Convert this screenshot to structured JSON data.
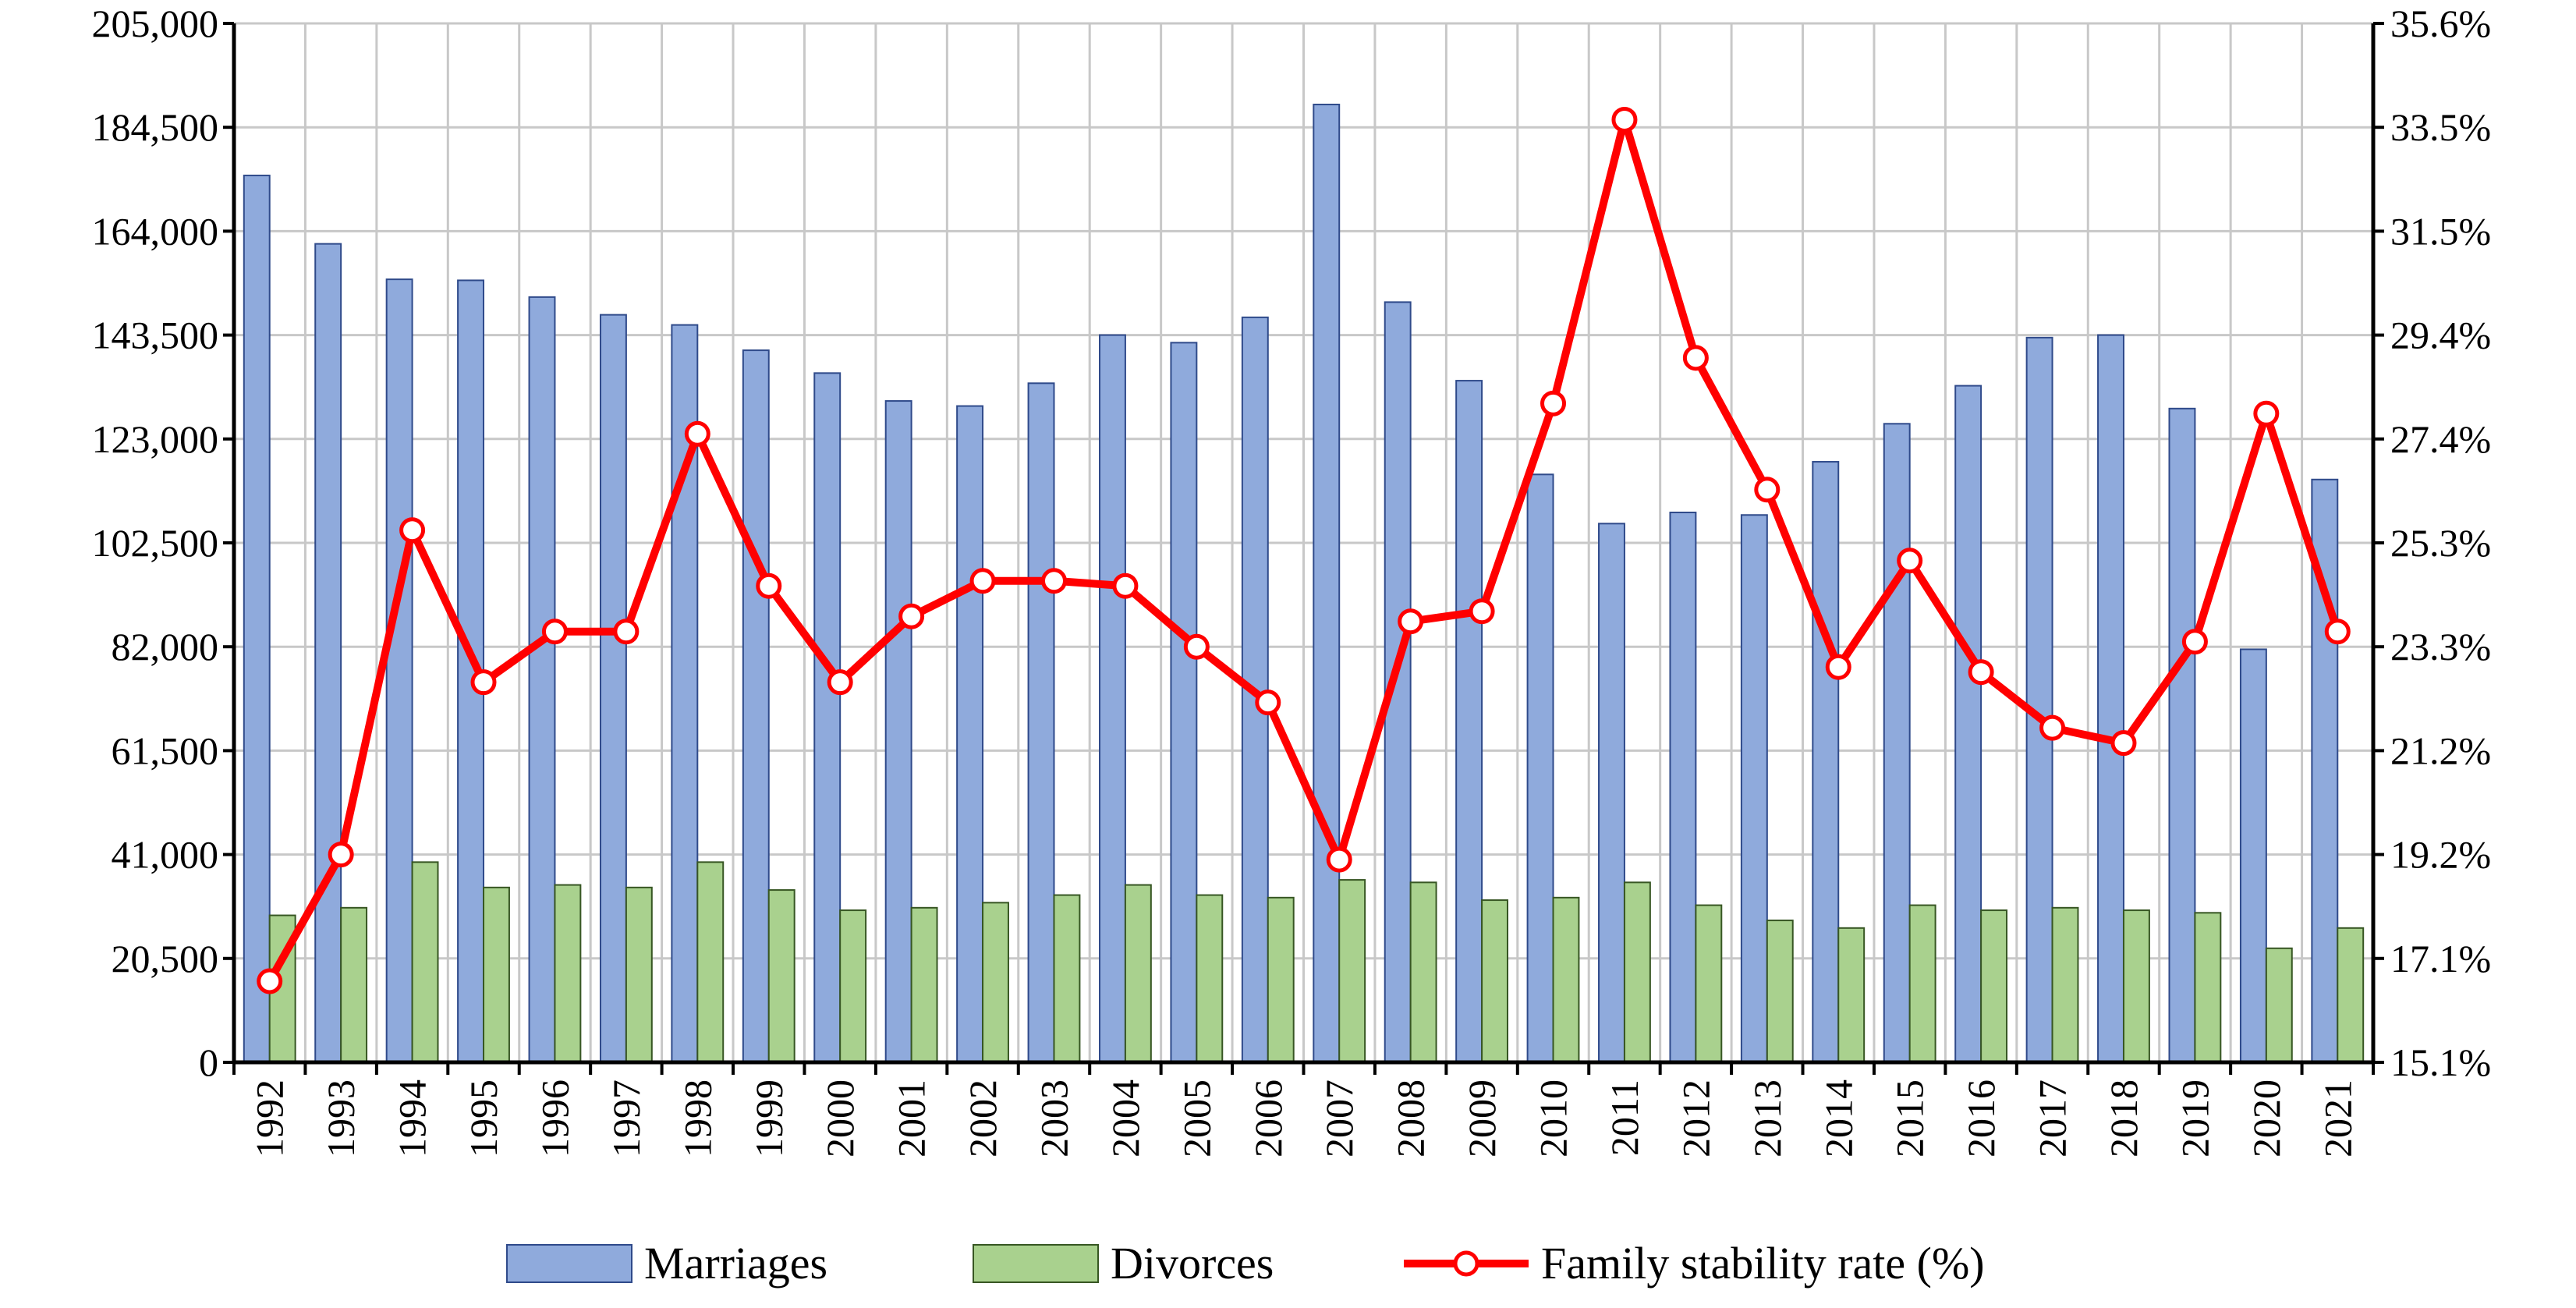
{
  "chart_data": {
    "type": "bar",
    "title": "",
    "xlabel": "",
    "ylabel": "",
    "categories": [
      "1992",
      "1993",
      "1994",
      "1995",
      "1996",
      "1997",
      "1998",
      "1999",
      "2000",
      "2001",
      "2002",
      "2003",
      "2004",
      "2005",
      "2006",
      "2007",
      "2008",
      "2009",
      "2010",
      "2011",
      "2012",
      "2013",
      "2014",
      "2015",
      "2016",
      "2017",
      "2018",
      "2019",
      "2020",
      "2021"
    ],
    "ylim": [
      0,
      205000
    ],
    "y2lim": [
      15.1,
      35.6
    ],
    "y_ticks": [
      "0",
      "20,500",
      "41,000",
      "61,500",
      "82,000",
      "102,500",
      "123,000",
      "143,500",
      "164,000",
      "184,500",
      "205,000"
    ],
    "y2_ticks": [
      "15.1%",
      "17.1%",
      "19.2%",
      "21.2%",
      "23.3%",
      "25.3%",
      "27.4%",
      "29.4%",
      "31.5%",
      "33.5%",
      "35.6%"
    ],
    "grid": true,
    "legend_position": "bottom",
    "series": [
      {
        "name": "Marriages",
        "type": "bar",
        "axis": "left",
        "color": "#8faadc",
        "edge": "#2f4a8a",
        "values": [
          175000,
          161500,
          154500,
          154300,
          151000,
          147500,
          145500,
          140500,
          136000,
          130500,
          129500,
          134000,
          143500,
          142000,
          147000,
          189000,
          150000,
          134500,
          116000,
          106300,
          108500,
          108000,
          118500,
          126000,
          133500,
          143000,
          143500,
          129000,
          81500,
          115000
        ]
      },
      {
        "name": "Divorces",
        "type": "bar",
        "axis": "left",
        "color": "#a9d18e",
        "edge": "#375623",
        "values": [
          29000,
          30500,
          39500,
          34500,
          35000,
          34500,
          39500,
          34000,
          30000,
          30500,
          31500,
          33000,
          35000,
          33000,
          32500,
          36000,
          35500,
          32000,
          32500,
          35500,
          31000,
          28000,
          26500,
          31000,
          30000,
          30500,
          30000,
          29500,
          22500,
          26500
        ]
      },
      {
        "name": "Family stability rate (%)",
        "type": "line",
        "axis": "right",
        "color": "#ff0000",
        "values": [
          16.7,
          19.2,
          25.6,
          22.6,
          23.6,
          23.6,
          27.5,
          24.5,
          22.6,
          23.9,
          24.6,
          24.6,
          24.5,
          23.3,
          22.2,
          19.1,
          23.8,
          24.0,
          28.1,
          33.7,
          29.0,
          26.4,
          22.9,
          25.0,
          22.8,
          21.7,
          21.4,
          23.4,
          27.9,
          23.6
        ]
      }
    ]
  }
}
